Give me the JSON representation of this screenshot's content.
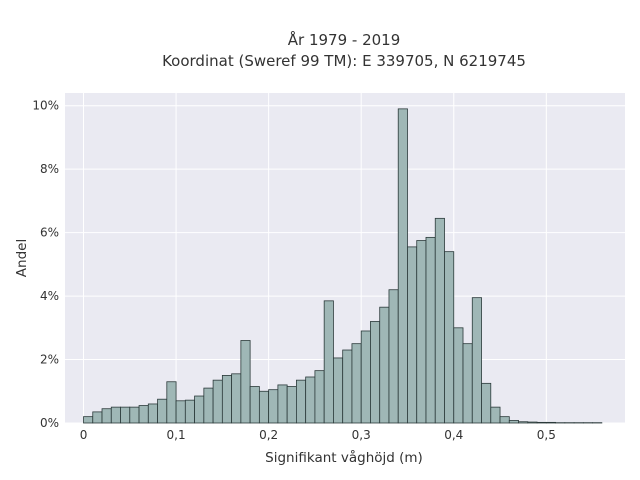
{
  "chart_data": {
    "type": "bar",
    "title_lines": [
      "År 1979 - 2019",
      "Koordinat (Sweref 99 TM): E 339705, N 6219745"
    ],
    "xlabel": "Signifikant våghöjd (m)",
    "ylabel": "Andel",
    "xlim": [
      -0.02,
      0.585
    ],
    "ylim": [
      0,
      10.4
    ],
    "x_ticks": [
      {
        "value": 0,
        "label": "0"
      },
      {
        "value": 0.1,
        "label": "0,1"
      },
      {
        "value": 0.2,
        "label": "0,2"
      },
      {
        "value": 0.3,
        "label": "0,3"
      },
      {
        "value": 0.4,
        "label": "0,4"
      },
      {
        "value": 0.5,
        "label": "0,5"
      }
    ],
    "y_ticks": [
      {
        "value": 0,
        "label": "0%"
      },
      {
        "value": 2,
        "label": "2%"
      },
      {
        "value": 4,
        "label": "4%"
      },
      {
        "value": 6,
        "label": "6%"
      },
      {
        "value": 8,
        "label": "8%"
      },
      {
        "value": 10,
        "label": "10%"
      }
    ],
    "bin_width": 0.01,
    "bin_starts": [
      0,
      0.01,
      0.02,
      0.03,
      0.04,
      0.05,
      0.06,
      0.07,
      0.08,
      0.09,
      0.1,
      0.11,
      0.12,
      0.13,
      0.14,
      0.15,
      0.16,
      0.17,
      0.18,
      0.19,
      0.2,
      0.21,
      0.22,
      0.23,
      0.24,
      0.25,
      0.26,
      0.27,
      0.28,
      0.29,
      0.3,
      0.31,
      0.32,
      0.33,
      0.34,
      0.35,
      0.36,
      0.37,
      0.38,
      0.39,
      0.4,
      0.41,
      0.42,
      0.43,
      0.44,
      0.45,
      0.46,
      0.47,
      0.48,
      0.49,
      0.5,
      0.51,
      0.52,
      0.53,
      0.54,
      0.55
    ],
    "values": [
      0.2,
      0.35,
      0.45,
      0.5,
      0.5,
      0.5,
      0.55,
      0.6,
      0.75,
      1.3,
      0.7,
      0.72,
      0.85,
      1.1,
      1.35,
      1.5,
      1.55,
      2.6,
      1.15,
      1.0,
      1.05,
      1.2,
      1.15,
      1.35,
      1.45,
      1.65,
      3.85,
      2.05,
      2.3,
      2.5,
      2.9,
      3.2,
      3.65,
      4.2,
      9.9,
      5.55,
      5.75,
      5.85,
      6.45,
      5.4,
      3.0,
      2.5,
      3.95,
      1.25,
      0.5,
      0.2,
      0.08,
      0.04,
      0.03,
      0.02,
      0.02,
      0.01,
      0.01,
      0.01,
      0.01,
      0.01
    ],
    "bar_color": "#9fb7b6",
    "bar_edge_color": "#2b3a3a",
    "background_color": "#eaeaf2",
    "grid": true,
    "grid_color": "#ffffff"
  }
}
